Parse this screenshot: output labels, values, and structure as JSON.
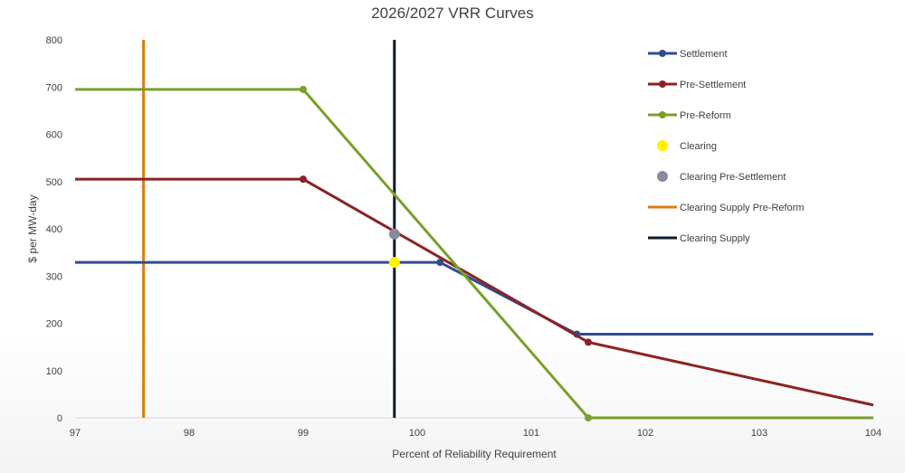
{
  "chart_data": {
    "type": "line",
    "title": "2026/2027 VRR Curves",
    "xlabel": "Percent of Reliability Requirement",
    "ylabel": "$ per MW-day",
    "xlim": [
      97,
      104
    ],
    "ylim": [
      0,
      800
    ],
    "x_ticks": [
      97,
      98,
      99,
      100,
      101,
      102,
      103,
      104
    ],
    "y_ticks": [
      0,
      100,
      200,
      300,
      400,
      500,
      600,
      700,
      800
    ],
    "grid": false,
    "legend_position": "right",
    "series": [
      {
        "name": "Settlement",
        "color": "#2E4C8F",
        "kind": "line",
        "x": [
          97,
          100.2,
          101.4,
          104
        ],
        "y": [
          329,
          329,
          177,
          177
        ]
      },
      {
        "name": "Pre-Settlement",
        "color": "#8B2323",
        "kind": "line",
        "x": [
          97,
          99,
          101.5,
          104
        ],
        "y": [
          505,
          505,
          160,
          27
        ]
      },
      {
        "name": "Pre-Reform",
        "color": "#77A02C",
        "kind": "line",
        "x": [
          97,
          99,
          101.5,
          104
        ],
        "y": [
          695,
          695,
          0,
          0
        ]
      },
      {
        "name": "Clearing",
        "color": "#FFF200",
        "kind": "point",
        "x": [
          99.8
        ],
        "y": [
          329
        ]
      },
      {
        "name": "Clearing Pre-Settlement",
        "color": "#8A8A9E",
        "kind": "point",
        "x": [
          99.8
        ],
        "y": [
          389
        ]
      },
      {
        "name": "Clearing Supply Pre-Reform",
        "color": "#E07A14",
        "kind": "vline",
        "x": [
          97.6,
          97.6
        ],
        "y": [
          0,
          800
        ]
      },
      {
        "name": "Clearing Supply",
        "color": "#0D1B2A",
        "kind": "vline",
        "x": [
          99.8,
          99.8
        ],
        "y": [
          0,
          800
        ]
      }
    ]
  }
}
